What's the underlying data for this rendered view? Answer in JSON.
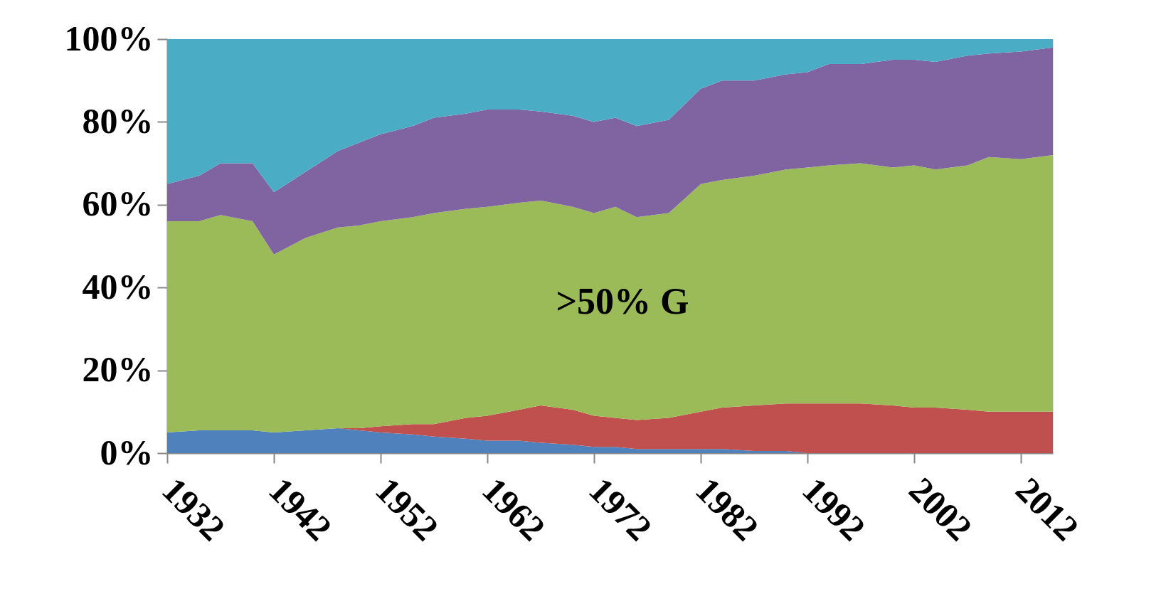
{
  "chart_data": {
    "type": "area",
    "stacked": true,
    "x": [
      1932,
      1935,
      1937,
      1940,
      1942,
      1945,
      1948,
      1950,
      1952,
      1955,
      1957,
      1960,
      1962,
      1965,
      1967,
      1970,
      1972,
      1974,
      1976,
      1979,
      1982,
      1984,
      1987,
      1990,
      1992,
      1994,
      1997,
      2000,
      2002,
      2004,
      2007,
      2009,
      2012,
      2015
    ],
    "series": [
      {
        "color": "#4f81bd",
        "values": [
          5,
          5.5,
          5.5,
          5.5,
          5,
          5.5,
          6,
          5.5,
          5,
          4.5,
          4,
          3.5,
          3,
          3,
          2.5,
          2,
          1.5,
          1.5,
          1,
          1,
          1,
          1,
          0.5,
          0.5,
          0,
          0,
          0,
          0,
          0,
          0,
          0,
          0,
          0,
          0
        ]
      },
      {
        "color": "#c0504d",
        "values": [
          0,
          0,
          0,
          0,
          0,
          0,
          0,
          0.5,
          1.5,
          2.5,
          3,
          5,
          6,
          7.5,
          9,
          8.5,
          7.5,
          7,
          7,
          7.5,
          9,
          10,
          11,
          11.5,
          12,
          12,
          12,
          11.5,
          11,
          11,
          10.5,
          10,
          10,
          10
        ]
      },
      {
        "color": "#9bbb59",
        "values": [
          51,
          50.5,
          52,
          50.5,
          43,
          46.5,
          48.5,
          49,
          49.5,
          50,
          51,
          50.5,
          50.5,
          50,
          49.5,
          49,
          49,
          51,
          49,
          49.5,
          55,
          55,
          55.5,
          56.5,
          57,
          57.5,
          58,
          57.5,
          58.5,
          57.5,
          59,
          61.5,
          61,
          62
        ]
      },
      {
        "color": "#8064a2",
        "values": [
          9,
          11,
          12.5,
          14,
          15,
          16,
          18.5,
          20,
          21,
          22,
          23,
          23,
          23.5,
          22.5,
          21.5,
          22,
          22,
          21.5,
          22,
          22.5,
          23,
          24,
          23,
          23,
          23,
          24.5,
          24,
          26,
          25.5,
          26,
          26.5,
          25,
          26,
          26
        ]
      },
      {
        "color": "#4bacc6",
        "values": [
          35,
          33,
          30,
          30,
          37,
          32,
          27,
          25,
          23,
          21,
          19,
          18,
          17,
          17,
          17.5,
          18.5,
          20,
          19,
          21,
          19.5,
          12,
          10,
          10,
          8.5,
          8,
          6,
          6,
          5,
          5,
          5.5,
          4,
          3.5,
          3,
          2
        ]
      }
    ],
    "xlim": [
      1932,
      2015
    ],
    "xticks": [
      1932,
      1942,
      1952,
      1962,
      1972,
      1982,
      1992,
      2002,
      2012
    ],
    "ylim": [
      0,
      100
    ],
    "yticks": [
      {
        "value": 0,
        "label": "0%"
      },
      {
        "value": 20,
        "label": "20%"
      },
      {
        "value": 40,
        "label": "40%"
      },
      {
        "value": 60,
        "label": "60%"
      },
      {
        "value": 80,
        "label": "80%"
      },
      {
        "value": 100,
        "label": "100%"
      }
    ],
    "annotations": [
      ">50% G"
    ],
    "grid": false,
    "legend": false
  }
}
